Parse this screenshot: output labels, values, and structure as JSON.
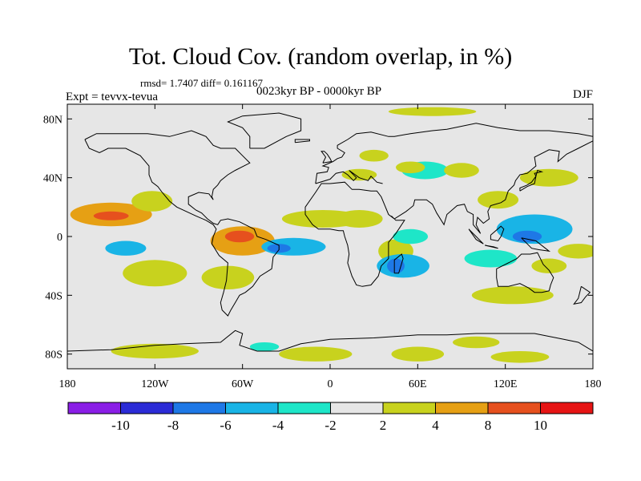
{
  "title": "Tot. Cloud Cov. (random overlap, in %)",
  "stats": "rmsd= 1.7407 diff= 0.161167",
  "experiment": "Expt = tevvx-tevua",
  "period": "0023kyr BP - 0000kyr BP",
  "season": "DJF",
  "axes": {
    "lon_ticks": [
      {
        "lon": -180,
        "label": "180"
      },
      {
        "lon": -120,
        "label": "120W"
      },
      {
        "lon": -60,
        "label": "60W"
      },
      {
        "lon": 0,
        "label": "0"
      },
      {
        "lon": 60,
        "label": "60E"
      },
      {
        "lon": 120,
        "label": "120E"
      },
      {
        "lon": 180,
        "label": "180"
      }
    ],
    "lat_ticks": [
      {
        "lat": 80,
        "label": "80N"
      },
      {
        "lat": 40,
        "label": "40N"
      },
      {
        "lat": 0,
        "label": "0"
      },
      {
        "lat": -40,
        "label": "40S"
      },
      {
        "lat": -80,
        "label": "80S"
      }
    ],
    "lon_range": [
      -180,
      180
    ],
    "lat_range": [
      -90,
      90
    ]
  },
  "colorbar": {
    "levels": [
      "-10",
      "-8",
      "-6",
      "-4",
      "-2",
      "2",
      "4",
      "8",
      "10"
    ],
    "colors": [
      "#8a1ee6",
      "#2b2bd6",
      "#1e78e6",
      "#19b4e6",
      "#1ee6c8",
      "#e6e6e6",
      "#c8d21e",
      "#e6a014",
      "#e6501e",
      "#e61414"
    ]
  },
  "chart_data": {
    "type": "heatmap",
    "title": "Tot. Cloud Cov. (random overlap, in %)",
    "xlabel": "",
    "ylabel": "",
    "xlim": [
      -180,
      180
    ],
    "ylim": [
      -90,
      90
    ],
    "anomaly_regions": [
      {
        "lon": -150,
        "lat": 15,
        "value": 5,
        "rx": 28,
        "ry": 8
      },
      {
        "lon": -150,
        "lat": 14,
        "value": 9,
        "rx": 12,
        "ry": 3
      },
      {
        "lon": -122,
        "lat": 24,
        "value": 3,
        "rx": 14,
        "ry": 7
      },
      {
        "lon": -140,
        "lat": -8,
        "value": -5,
        "rx": 14,
        "ry": 5
      },
      {
        "lon": -120,
        "lat": -25,
        "value": 3,
        "rx": 22,
        "ry": 9
      },
      {
        "lon": -60,
        "lat": -3,
        "value": 4,
        "rx": 22,
        "ry": 10
      },
      {
        "lon": -62,
        "lat": 0,
        "value": 8,
        "rx": 10,
        "ry": 4
      },
      {
        "lon": -70,
        "lat": -28,
        "value": 3,
        "rx": 18,
        "ry": 8
      },
      {
        "lon": -25,
        "lat": -7,
        "value": -5,
        "rx": 22,
        "ry": 6
      },
      {
        "lon": -35,
        "lat": -8,
        "value": -8,
        "rx": 8,
        "ry": 3
      },
      {
        "lon": -5,
        "lat": 12,
        "value": 3,
        "rx": 28,
        "ry": 6
      },
      {
        "lon": 20,
        "lat": 12,
        "value": 3,
        "rx": 16,
        "ry": 6
      },
      {
        "lon": 45,
        "lat": -10,
        "value": 3,
        "rx": 12,
        "ry": 8
      },
      {
        "lon": 55,
        "lat": 0,
        "value": -4,
        "rx": 12,
        "ry": 5
      },
      {
        "lon": 50,
        "lat": -20,
        "value": -5,
        "rx": 18,
        "ry": 8
      },
      {
        "lon": 45,
        "lat": -20,
        "value": -8,
        "rx": 6,
        "ry": 5
      },
      {
        "lon": 20,
        "lat": 42,
        "value": 3,
        "rx": 12,
        "ry": 4
      },
      {
        "lon": 65,
        "lat": 45,
        "value": -4,
        "rx": 16,
        "ry": 6
      },
      {
        "lon": 55,
        "lat": 47,
        "value": 3,
        "rx": 10,
        "ry": 4
      },
      {
        "lon": 90,
        "lat": 45,
        "value": 3,
        "rx": 12,
        "ry": 5
      },
      {
        "lon": 115,
        "lat": 25,
        "value": 3,
        "rx": 14,
        "ry": 6
      },
      {
        "lon": 140,
        "lat": 5,
        "value": -5,
        "rx": 26,
        "ry": 10
      },
      {
        "lon": 135,
        "lat": 0,
        "value": -8,
        "rx": 10,
        "ry": 4
      },
      {
        "lon": 110,
        "lat": -15,
        "value": -4,
        "rx": 18,
        "ry": 6
      },
      {
        "lon": 150,
        "lat": -20,
        "value": 3,
        "rx": 12,
        "ry": 5
      },
      {
        "lon": 125,
        "lat": -40,
        "value": 3,
        "rx": 28,
        "ry": 6
      },
      {
        "lon": 170,
        "lat": -10,
        "value": 3,
        "rx": 14,
        "ry": 5
      },
      {
        "lon": 150,
        "lat": 40,
        "value": 3,
        "rx": 20,
        "ry": 6
      },
      {
        "lon": 70,
        "lat": 85,
        "value": 3,
        "rx": 30,
        "ry": 3
      },
      {
        "lon": -120,
        "lat": -78,
        "value": 3,
        "rx": 30,
        "ry": 5
      },
      {
        "lon": -10,
        "lat": -80,
        "value": 3,
        "rx": 25,
        "ry": 5
      },
      {
        "lon": 60,
        "lat": -80,
        "value": 3,
        "rx": 18,
        "ry": 5
      },
      {
        "lon": 130,
        "lat": -82,
        "value": 3,
        "rx": 20,
        "ry": 4
      },
      {
        "lon": -45,
        "lat": -75,
        "value": -4,
        "rx": 10,
        "ry": 3
      },
      {
        "lon": 100,
        "lat": -72,
        "value": 3,
        "rx": 16,
        "ry": 4
      },
      {
        "lon": 30,
        "lat": 55,
        "value": 3,
        "rx": 10,
        "ry": 4
      }
    ]
  }
}
